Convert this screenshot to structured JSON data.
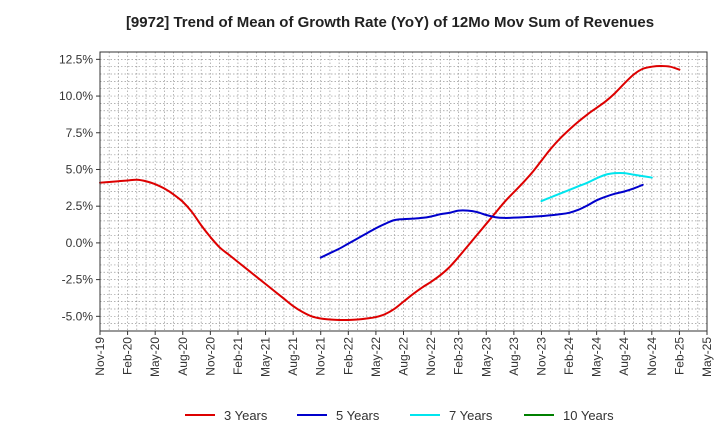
{
  "chart_data": {
    "type": "line",
    "title": "[9972]  Trend of Mean of Growth Rate (YoY) of 12Mo Mov Sum of Revenues",
    "xlabel": "",
    "ylabel": "",
    "ylim": [
      -6.0,
      13.0
    ],
    "y_ticks": [
      -5.0,
      -2.5,
      0.0,
      2.5,
      5.0,
      7.5,
      10.0,
      12.5
    ],
    "y_tick_labels": [
      "-5.0%",
      "-2.5%",
      "0.0%",
      "2.5%",
      "5.0%",
      "7.5%",
      "10.0%",
      "12.5%"
    ],
    "x_tick_labels": [
      "Nov-19",
      "Feb-20",
      "May-20",
      "Aug-20",
      "Nov-20",
      "Feb-21",
      "May-21",
      "Aug-21",
      "Nov-21",
      "Feb-22",
      "May-22",
      "Aug-22",
      "Nov-22",
      "Feb-23",
      "May-23",
      "Aug-23",
      "Nov-23",
      "Feb-24",
      "May-24",
      "Aug-24",
      "Nov-24",
      "Feb-25",
      "May-25"
    ],
    "grid": true,
    "legend_position": "bottom",
    "series": [
      {
        "name": "3 Years",
        "color": "#dd0000",
        "start_index": 0,
        "values": [
          4.1,
          4.15,
          4.2,
          4.25,
          4.3,
          4.2,
          4.0,
          3.7,
          3.3,
          2.8,
          2.1,
          1.2,
          0.4,
          -0.3,
          -0.8,
          -1.3,
          -1.8,
          -2.3,
          -2.8,
          -3.3,
          -3.8,
          -4.3,
          -4.7,
          -5.0,
          -5.15,
          -5.22,
          -5.25,
          -5.25,
          -5.22,
          -5.15,
          -5.05,
          -4.85,
          -4.5,
          -4.0,
          -3.5,
          -3.05,
          -2.65,
          -2.2,
          -1.65,
          -0.95,
          -0.2,
          0.55,
          1.3,
          2.05,
          2.8,
          3.45,
          4.1,
          4.8,
          5.6,
          6.4,
          7.1,
          7.7,
          8.25,
          8.75,
          9.2,
          9.65,
          10.2,
          10.85,
          11.45,
          11.85,
          12.0,
          12.05,
          12.0,
          11.8
        ]
      },
      {
        "name": "5 Years",
        "color": "#0000cc",
        "start_index": 24,
        "values": [
          -1.0,
          -0.7,
          -0.4,
          -0.05,
          0.3,
          0.65,
          1.0,
          1.3,
          1.55,
          1.62,
          1.65,
          1.7,
          1.8,
          1.95,
          2.05,
          2.2,
          2.2,
          2.1,
          1.9,
          1.75,
          1.7,
          1.72,
          1.75,
          1.78,
          1.82,
          1.88,
          1.95,
          2.05,
          2.25,
          2.55,
          2.9,
          3.15,
          3.35,
          3.5,
          3.7,
          3.95
        ]
      },
      {
        "name": "7 Years",
        "color": "#00e5ee",
        "start_index": 48,
        "values": [
          2.85,
          3.1,
          3.35,
          3.6,
          3.85,
          4.1,
          4.4,
          4.65,
          4.75,
          4.75,
          4.65,
          4.55,
          4.45
        ]
      },
      {
        "name": "10 Years",
        "color": "#008000",
        "start_index": 0,
        "values": []
      }
    ]
  }
}
